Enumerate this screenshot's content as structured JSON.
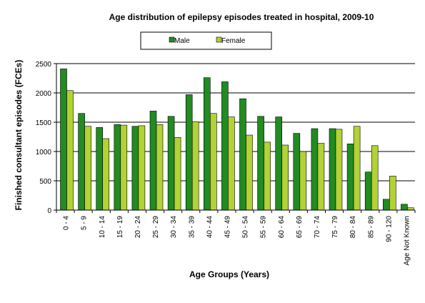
{
  "chart_data": {
    "type": "bar",
    "title": "Age distribution  of epilepsy episodes treated in hospital, 2009-10",
    "xlabel": "Age Groups  (Years)",
    "ylabel": "Finished consultant  episodes (FCEs)",
    "ylim": [
      0,
      2500
    ],
    "yticks": [
      "0",
      "500",
      "1000",
      "1500",
      "2000",
      "2500"
    ],
    "grid": true,
    "legend_position": "top",
    "categories": [
      "0 - 4",
      "5 - 9",
      "10 - 14",
      "15 - 19",
      "20 - 24",
      "25 - 29",
      "30 - 34",
      "35 - 39",
      "40 - 44",
      "45 - 49",
      "50 - 54",
      "55 - 59",
      "60 - 64",
      "65 - 69",
      "70 - 74",
      "75 - 79",
      "80 - 84",
      "85 - 89",
      "90 - 120",
      "Age Not Known"
    ],
    "series": [
      {
        "name": "Male",
        "color": "#228B22",
        "values": [
          2410,
          1650,
          1410,
          1460,
          1430,
          1690,
          1600,
          1970,
          2260,
          2190,
          1900,
          1600,
          1590,
          1310,
          1390,
          1390,
          1130,
          650,
          185,
          100
        ]
      },
      {
        "name": "Female",
        "color": "#B2D235",
        "values": [
          2040,
          1430,
          1220,
          1450,
          1440,
          1460,
          1240,
          1510,
          1650,
          1590,
          1280,
          1160,
          1110,
          1000,
          1140,
          1380,
          1430,
          1100,
          580,
          40
        ]
      }
    ]
  }
}
